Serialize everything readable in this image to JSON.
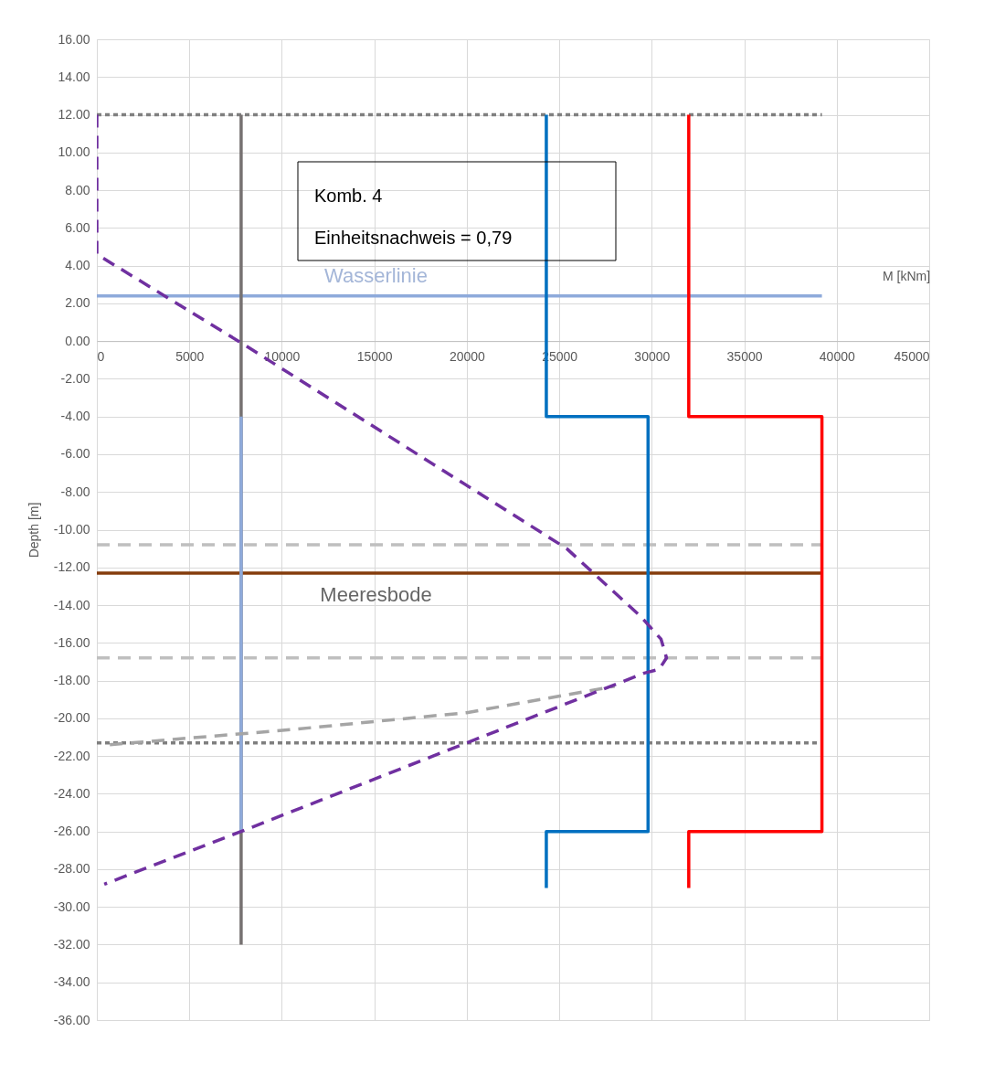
{
  "chart_data": {
    "type": "line",
    "xlabel": "M [kNm]",
    "ylabel": "Depth [m]",
    "xlim": [
      0,
      45000
    ],
    "xticks": [
      0,
      5000,
      10000,
      15000,
      20000,
      25000,
      30000,
      35000,
      40000,
      45000
    ],
    "ylim": [
      -36,
      16
    ],
    "yticks": [
      {
        "value": 16,
        "label": "16.00"
      },
      {
        "value": 14,
        "label": "14.00"
      },
      {
        "value": 12,
        "label": "12.00"
      },
      {
        "value": 10,
        "label": "10.00"
      },
      {
        "value": 8,
        "label": "8.00"
      },
      {
        "value": 6,
        "label": "6.00"
      },
      {
        "value": 4,
        "label": "4.00"
      },
      {
        "value": 2,
        "label": "2.00"
      },
      {
        "value": 0,
        "label": "0.00"
      },
      {
        "value": -2,
        "label": "-2.00"
      },
      {
        "value": -4,
        "label": "-4.00"
      },
      {
        "value": -6,
        "label": "-6.00"
      },
      {
        "value": -8,
        "label": "-8.00"
      },
      {
        "value": -10,
        "label": "-10.00"
      },
      {
        "value": -12,
        "label": "-12.00"
      },
      {
        "value": -14,
        "label": "-14.00"
      },
      {
        "value": -16,
        "label": "-16.00"
      },
      {
        "value": -18,
        "label": "-18.00"
      },
      {
        "value": -20,
        "label": "-20.00"
      },
      {
        "value": -22,
        "label": "-22.00"
      },
      {
        "value": -24,
        "label": "-24.00"
      },
      {
        "value": -26,
        "label": "-26.00"
      },
      {
        "value": -28,
        "label": "-28.00"
      },
      {
        "value": -30,
        "label": "-30.00"
      },
      {
        "value": -32,
        "label": "-32.00"
      },
      {
        "value": -34,
        "label": "-34.00"
      },
      {
        "value": -36,
        "label": "-36.00"
      }
    ],
    "grid": true,
    "legend": false,
    "marker": "none",
    "annotations": [
      "Komb. 4",
      "Einheitsnachweis = 0,79"
    ],
    "series": [
      {
        "color": "#7f7f7f",
        "line_style": "dotted",
        "x": [
          0,
          39200
        ],
        "values": [
          12,
          12
        ]
      },
      {
        "color": "#bfbfbf",
        "line_style": "dashed",
        "x": [
          0,
          39200
        ],
        "values": [
          -10.8,
          -10.8
        ]
      },
      {
        "color": "#bfbfbf",
        "line_style": "dashed",
        "x": [
          0,
          39200
        ],
        "values": [
          -16.8,
          -16.8
        ]
      },
      {
        "color": "#7f7f7f",
        "line_style": "dotted",
        "x": [
          0,
          39200
        ],
        "values": [
          -21.3,
          -21.3
        ]
      },
      {
        "name": "Wasserlinie",
        "color": "#8eaadb",
        "line_style": "solid",
        "x": [
          0,
          39200
        ],
        "values": [
          2.4,
          2.4
        ]
      },
      {
        "name": "Meeresbode",
        "color": "#843c0c",
        "line_style": "solid",
        "x": [
          0,
          39200
        ],
        "values": [
          -12.3,
          -12.3
        ]
      },
      {
        "color": "#767171",
        "line_style": "solid",
        "x": [
          7800,
          7800
        ],
        "values": [
          12,
          -32
        ]
      },
      {
        "color": "#8eaadb",
        "line_style": "solid",
        "x": [
          7800,
          7800
        ],
        "values": [
          -4,
          -26
        ]
      },
      {
        "color": "#0070c0",
        "line_style": "solid",
        "x": [
          24300,
          24300,
          29800,
          29800,
          24300,
          24300
        ],
        "values": [
          12,
          -4,
          -4,
          -26,
          -26,
          -29
        ]
      },
      {
        "color": "#ff0000",
        "line_style": "solid",
        "x": [
          32000,
          32000,
          39200,
          39200,
          32000,
          32000
        ],
        "values": [
          12,
          -4,
          -4,
          -26,
          -26,
          -29
        ]
      },
      {
        "color": "#a5a5a5",
        "line_style": "dashed",
        "x": [
          700,
          10500,
          20000,
          28000
        ],
        "values": [
          -21.4,
          -20.6,
          -19.7,
          -18.3
        ]
      },
      {
        "color": "#7030a0",
        "line_style": "dashed",
        "x": [
          0,
          0,
          7650,
          25400,
          29400,
          30500,
          30800,
          30400,
          29600,
          20000,
          7800,
          400
        ],
        "values": [
          12,
          4.6,
          0,
          -11,
          -14.6,
          -15.8,
          -16.8,
          -17.4,
          -17.6,
          -21.3,
          -26,
          -28.8
        ]
      }
    ]
  }
}
